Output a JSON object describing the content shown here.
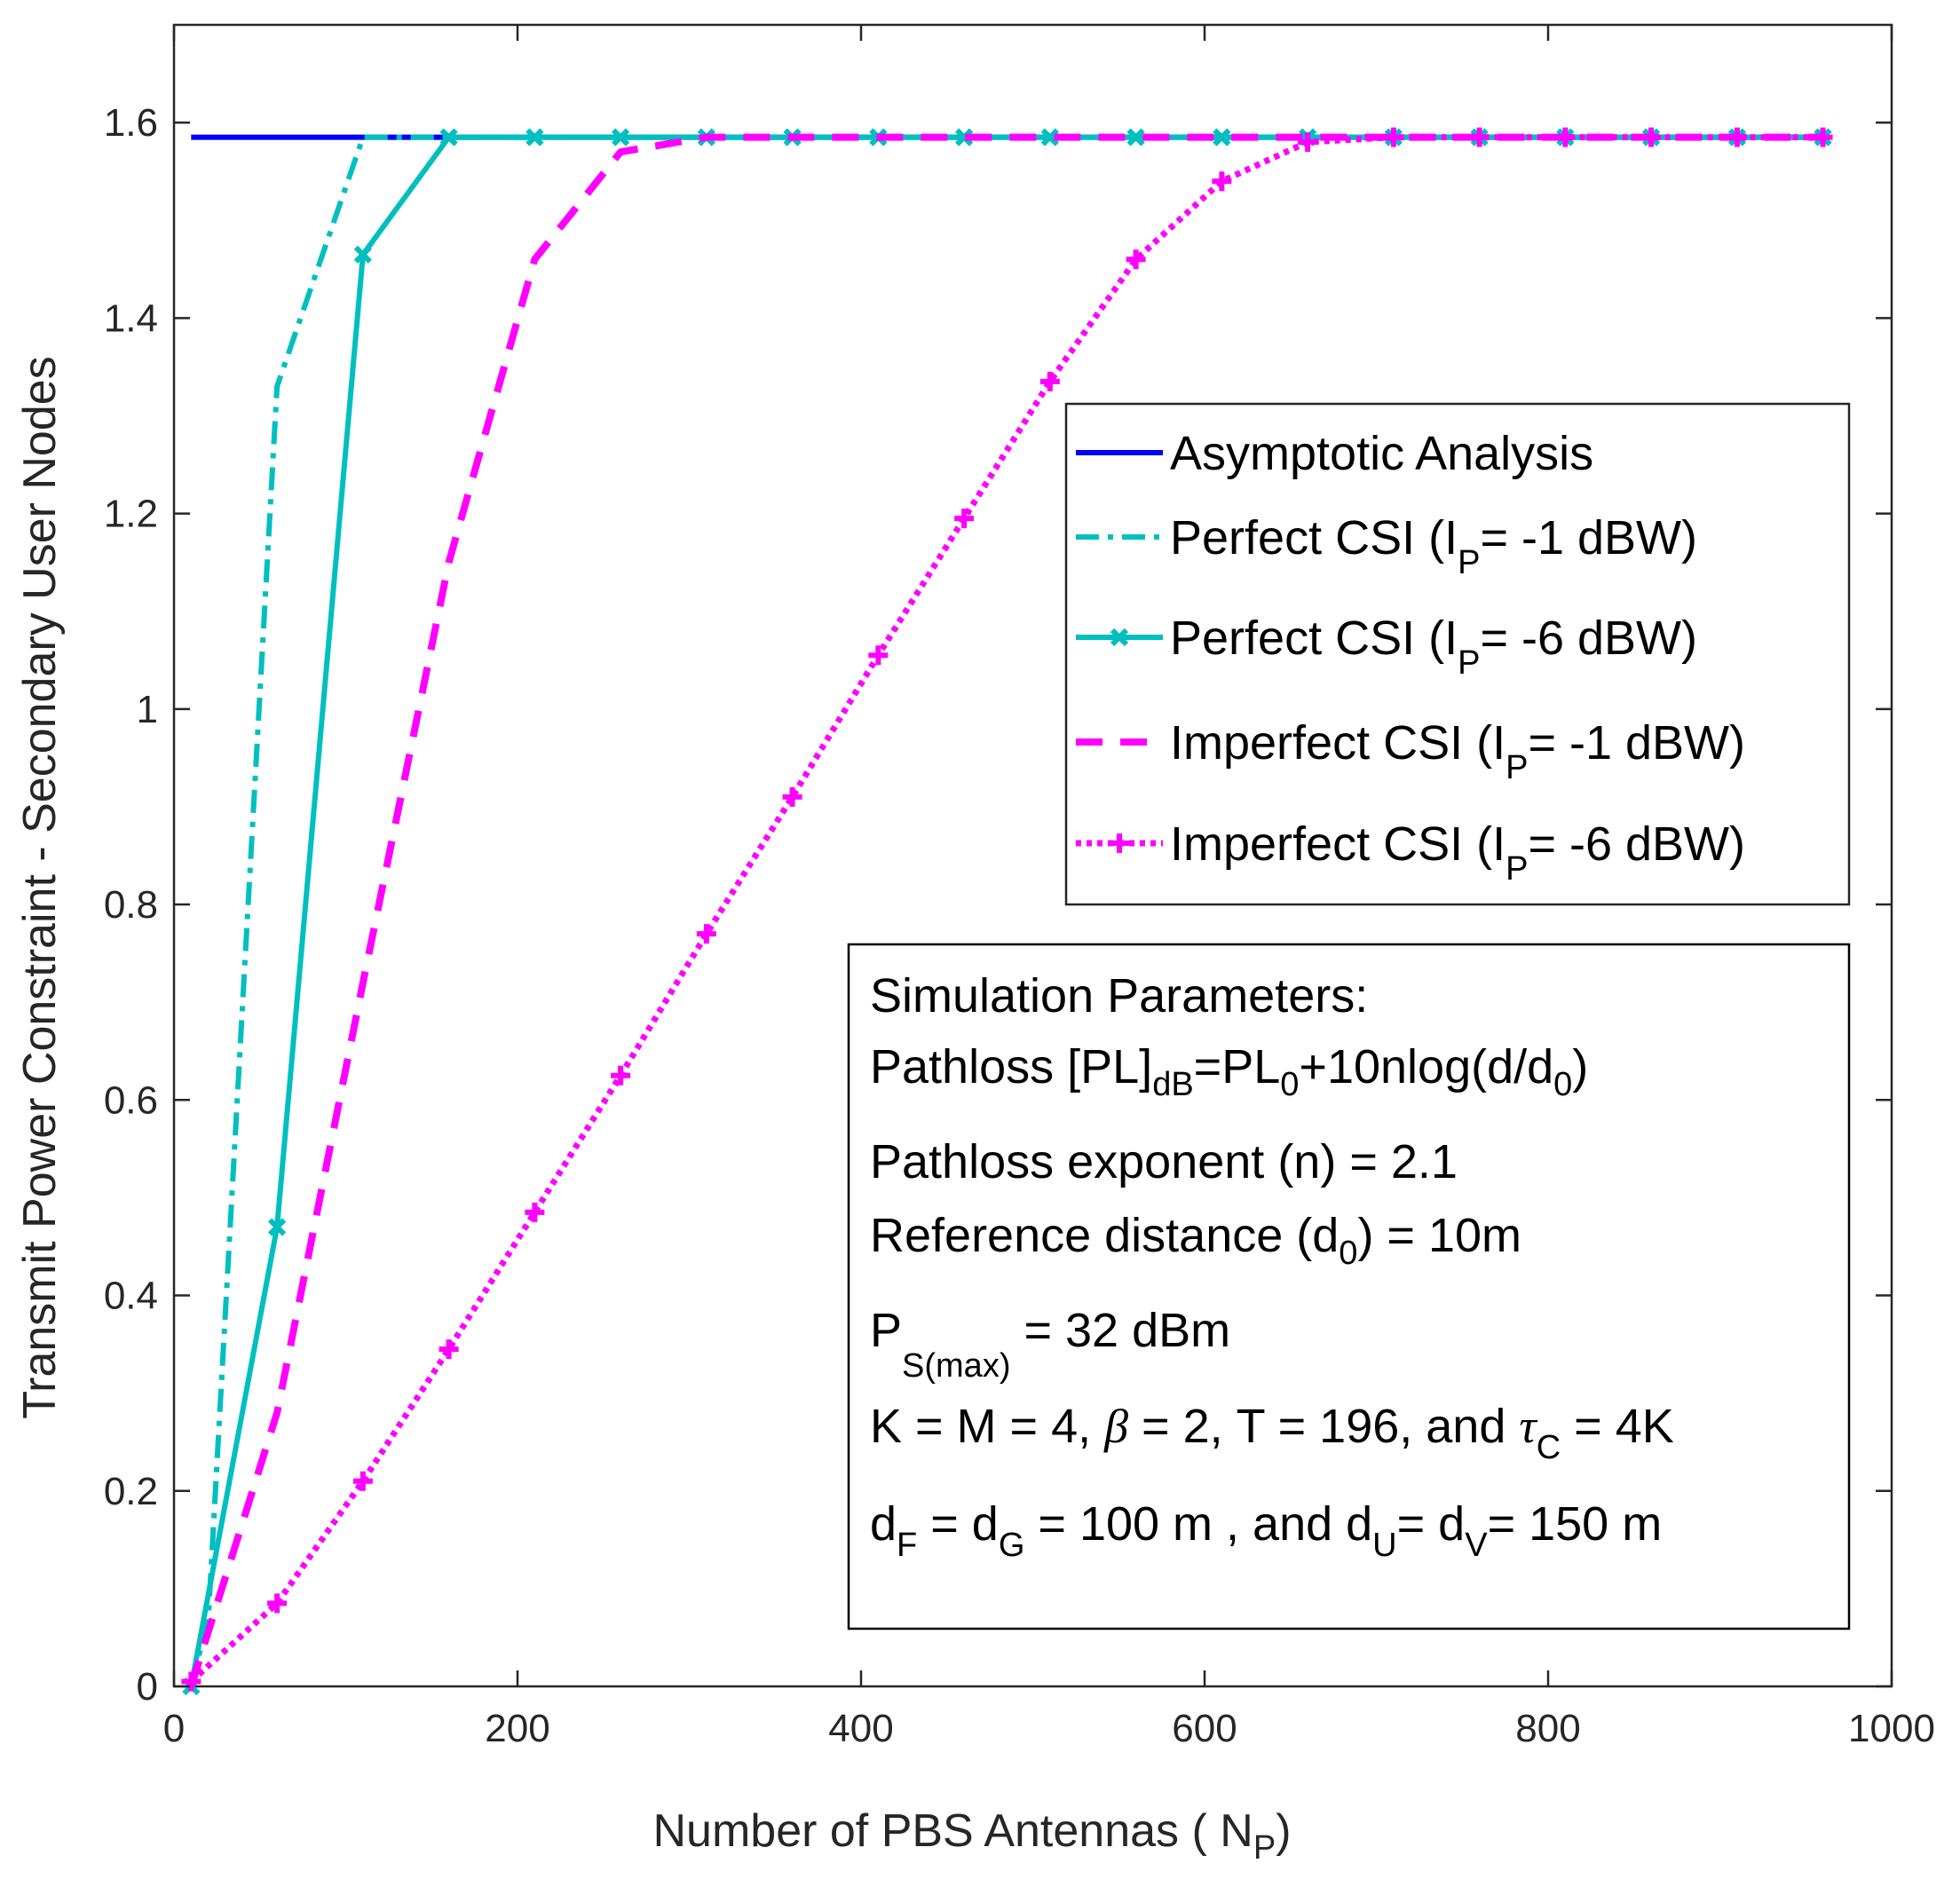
{
  "chart_data": {
    "type": "line",
    "title": "",
    "xlabel": "Number of PBS Antennas ( N",
    "xlabel_sub": "P",
    "xlabel_tail": ")",
    "ylabel": "Transmit Power Constraint - Secondary User Nodes",
    "xlim": [
      0,
      1000
    ],
    "ylim": [
      0,
      1.7
    ],
    "xticks": [
      0,
      200,
      400,
      600,
      800,
      1000
    ],
    "xtick_labels": [
      "0",
      "200",
      "400",
      "600",
      "800",
      "1000"
    ],
    "yticks": [
      0,
      0.2,
      0.4,
      0.6,
      0.8,
      1,
      1.2,
      1.4,
      1.6
    ],
    "ytick_labels": [
      "0",
      "0.2",
      "0.4",
      "0.6",
      "0.8",
      "1",
      "1.2",
      "1.4",
      "1.6"
    ],
    "grid": false,
    "legend_position": "upper-right",
    "series": [
      {
        "name": "Asymptotic Analysis",
        "color": "#0000ff",
        "style": "solid",
        "marker": "none",
        "x": [
          10,
          960
        ],
        "y": [
          1.585,
          1.585
        ]
      },
      {
        "name": "Perfect CSI (I_P= -1 dBW)",
        "color": "#00bfbf",
        "style": "dashdot",
        "marker": "none",
        "x": [
          10,
          20,
          60,
          110,
          160,
          210,
          260,
          310,
          360,
          410,
          460,
          510,
          560,
          610,
          660,
          710,
          760,
          810,
          860,
          910,
          960
        ],
        "y": [
          0,
          0.07,
          1.33,
          1.585,
          1.585,
          1.585,
          1.585,
          1.585,
          1.585,
          1.585,
          1.585,
          1.585,
          1.585,
          1.585,
          1.585,
          1.585,
          1.585,
          1.585,
          1.585,
          1.585,
          1.585
        ]
      },
      {
        "name": "Perfect CSI (I_P= -6 dBW)",
        "color": "#00bfbf",
        "style": "solid",
        "marker": "x",
        "x": [
          10,
          60,
          110,
          160,
          210,
          260,
          310,
          360,
          410,
          460,
          510,
          560,
          610,
          660,
          710,
          760,
          810,
          860,
          910,
          960
        ],
        "y": [
          0,
          0.47,
          1.465,
          1.585,
          1.585,
          1.585,
          1.585,
          1.585,
          1.585,
          1.585,
          1.585,
          1.585,
          1.585,
          1.585,
          1.585,
          1.585,
          1.585,
          1.585,
          1.585,
          1.585
        ]
      },
      {
        "name": "Imperfect CSI (I_P= -1 dBW)",
        "color": "#ff00ff",
        "style": "dashed",
        "marker": "none",
        "x": [
          10,
          60,
          110,
          160,
          210,
          260,
          310,
          360,
          410,
          460,
          510,
          560,
          610,
          660,
          710,
          760,
          810,
          860,
          910,
          960
        ],
        "y": [
          0,
          0.28,
          0.72,
          1.15,
          1.46,
          1.57,
          1.585,
          1.585,
          1.585,
          1.585,
          1.585,
          1.585,
          1.585,
          1.585,
          1.585,
          1.585,
          1.585,
          1.585,
          1.585,
          1.585
        ]
      },
      {
        "name": "Imperfect CSI (I_P= -6 dBW)",
        "color": "#ff00ff",
        "style": "dotted",
        "marker": "plus",
        "x": [
          10,
          60,
          110,
          160,
          210,
          260,
          310,
          360,
          410,
          460,
          510,
          560,
          610,
          660,
          710,
          760,
          810,
          860,
          910,
          960
        ],
        "y": [
          0.005,
          0.085,
          0.21,
          0.345,
          0.485,
          0.625,
          0.77,
          0.91,
          1.055,
          1.195,
          1.335,
          1.46,
          1.54,
          1.58,
          1.585,
          1.585,
          1.585,
          1.585,
          1.585,
          1.585
        ]
      }
    ],
    "legend": [
      {
        "main": "Asymptotic Analysis",
        "sub": "",
        "tail": ""
      },
      {
        "main": "Perfect CSI (I",
        "sub": "P",
        "tail": "= -1 dBW)"
      },
      {
        "main": "Perfect CSI (I",
        "sub": "P",
        "tail": "= -6 dBW)"
      },
      {
        "main": "Imperfect CSI (I",
        "sub": "P",
        "tail": "= -1 dBW)"
      },
      {
        "main": "Imperfect CSI (I",
        "sub": "P",
        "tail": "= -6 dBW)"
      }
    ],
    "annotation": {
      "title": "Simulation Parameters:",
      "pathloss": [
        "Pathloss [PL]",
        "dB",
        "=PL",
        "0",
        "+10nlog(d/d",
        "0",
        ")"
      ],
      "exponent": "Pathloss exponent (n) = 2.1",
      "refdist": [
        "Reference distance (d",
        "0",
        ") = 10m"
      ],
      "pmax": [
        "P",
        "S(max)",
        " = 32 dBm"
      ],
      "params": [
        "K = M = 4, ",
        "β",
        " = 2, T = 196, and ",
        "τ",
        "C",
        " = 4K"
      ],
      "distances": [
        "d",
        "F",
        " = d",
        "G",
        " = 100 m , and  d",
        "U",
        "= d",
        "V",
        "= 150 m"
      ]
    }
  }
}
